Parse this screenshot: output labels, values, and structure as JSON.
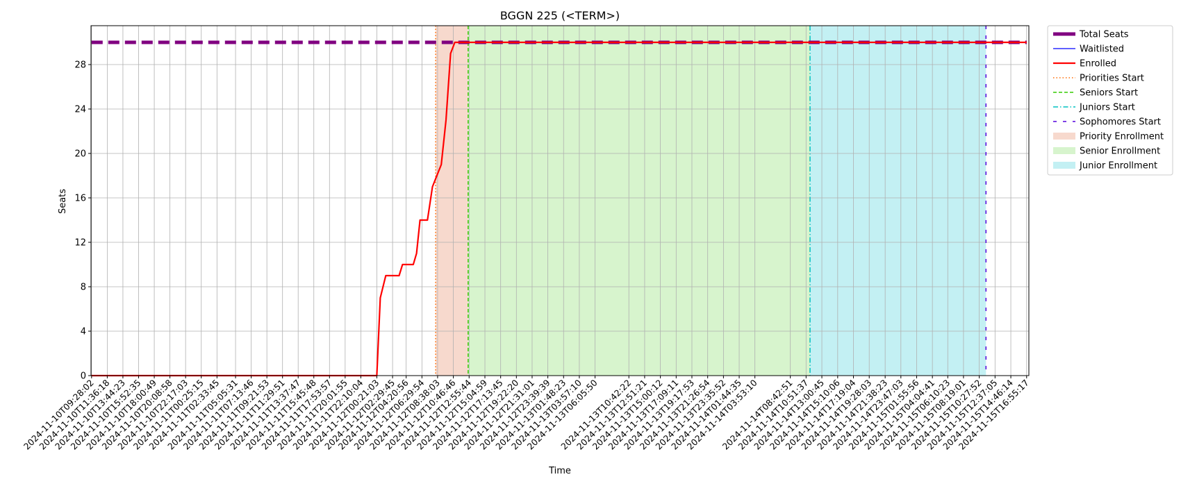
{
  "chart_data": {
    "type": "line",
    "title": "BGGN 225 (<TERM>)",
    "xlabel": "Time",
    "ylabel": "Seats",
    "ylim": [
      0,
      30
    ],
    "yticks": [
      0,
      4,
      8,
      12,
      16,
      20,
      24,
      28
    ],
    "grid": true,
    "legend_position": "outside-top-right",
    "x_ticks": [
      "2024-11-10T09:28:02",
      "2024-11-10T11:36:18",
      "2024-11-10T13:44:23",
      "2024-11-10T15:52:35",
      "2024-11-10T18:00:49",
      "2024-11-10T20:08:58",
      "2024-11-10T22:17:03",
      "2024-11-11T00:25:15",
      "2024-11-11T02:33:45",
      "2024-11-11T05:05:31",
      "2024-11-11T07:13:46",
      "2024-11-11T09:21:53",
      "2024-11-11T11:29:51",
      "2024-11-11T13:37:47",
      "2024-11-11T15:45:48",
      "2024-11-11T17:53:57",
      "2024-11-11T20:01:55",
      "2024-11-11T22:10:04",
      "2024-11-12T00:21:03",
      "2024-11-12T02:29:45",
      "2024-11-12T04:20:56",
      "2024-11-12T06:29:54",
      "2024-11-12T08:38:03",
      "2024-11-12T10:46:46",
      "2024-11-12T12:55:44",
      "2024-11-12T15:04:59",
      "2024-11-12T17:13:45",
      "2024-11-12T19:22:20",
      "2024-11-12T21:31:01",
      "2024-11-12T23:39:39",
      "2024-11-13T01:48:23",
      "2024-11-13T03:57:10",
      "2024-11-13T06:05:50",
      "2024-11-13T10:42:22",
      "2024-11-13T12:51:21",
      "2024-11-13T15:00:12",
      "2024-11-13T17:09:11",
      "2024-11-13T19:17:53",
      "2024-11-13T21:26:54",
      "2024-11-13T23:35:52",
      "2024-11-14T01:44:35",
      "2024-11-14T03:53:10",
      "2024-11-14T08:42:51",
      "2024-11-14T10:51:37",
      "2024-11-14T13:00:45",
      "2024-11-14T15:10:06",
      "2024-11-14T17:19:04",
      "2024-11-14T19:28:03",
      "2024-11-14T21:38:23",
      "2024-11-14T23:47:03",
      "2024-11-15T01:55:56",
      "2024-11-15T04:04:41",
      "2024-11-15T06:10:23",
      "2024-11-15T08:19:01",
      "2024-11-15T10:27:52",
      "2024-11-15T12:37:05",
      "2024-11-15T14:46:14",
      "2024-11-15T16:55:17"
    ],
    "series": [
      {
        "name": "Total Seats",
        "color": "#800080",
        "style": "dashed-thick",
        "points": [
          {
            "x": "2024-11-10T09:28:02",
            "y": 30
          },
          {
            "x": "2024-11-15T16:55:17",
            "y": 30
          }
        ]
      },
      {
        "name": "Waitlisted",
        "color": "#0000ff",
        "style": "solid-thin",
        "points": []
      },
      {
        "name": "Enrolled",
        "color": "#ff0000",
        "style": "solid",
        "points": [
          {
            "x": "2024-11-10T09:28:02",
            "y": 0
          },
          {
            "x": "2024-11-12T00:21:03",
            "y": 0
          },
          {
            "x": "2024-11-12T00:49:00",
            "y": 7
          },
          {
            "x": "2024-11-12T01:34:00",
            "y": 9
          },
          {
            "x": "2024-11-12T03:23:00",
            "y": 9
          },
          {
            "x": "2024-11-12T03:51:00",
            "y": 10
          },
          {
            "x": "2024-11-12T05:19:00",
            "y": 10
          },
          {
            "x": "2024-11-12T05:46:00",
            "y": 11
          },
          {
            "x": "2024-11-12T06:14:00",
            "y": 14
          },
          {
            "x": "2024-11-12T07:15:00",
            "y": 14
          },
          {
            "x": "2024-11-12T07:56:00",
            "y": 17
          },
          {
            "x": "2024-11-12T09:08:00",
            "y": 19
          },
          {
            "x": "2024-11-12T09:47:00",
            "y": 23
          },
          {
            "x": "2024-11-12T10:24:00",
            "y": 29
          },
          {
            "x": "2024-11-12T10:59:00",
            "y": 30
          },
          {
            "x": "2024-11-15T16:55:17",
            "y": 30
          }
        ]
      }
    ],
    "vlines": [
      {
        "name": "Priorities Start",
        "x": "2024-11-12T08:22:00",
        "color": "#ff6a00",
        "style": "dotted"
      },
      {
        "name": "Seniors Start",
        "x": "2024-11-12T12:48:00",
        "color": "#33cc00",
        "style": "dashed"
      },
      {
        "name": "Juniors Start",
        "x": "2024-11-14T11:24:00",
        "color": "#00c0c0",
        "style": "dashdot"
      },
      {
        "name": "Sophomores Start",
        "x": "2024-11-15T11:23:00",
        "color": "#5500dd",
        "style": "loosedash"
      }
    ],
    "spans": [
      {
        "name": "Priority Enrollment",
        "from": "2024-11-12T08:22:00",
        "to": "2024-11-12T12:48:00",
        "color": "#f4c9b8"
      },
      {
        "name": "Senior Enrollment",
        "from": "2024-11-12T12:48:00",
        "to": "2024-11-14T11:24:00",
        "color": "#c6efb8"
      },
      {
        "name": "Junior Enrollment",
        "from": "2024-11-14T11:24:00",
        "to": "2024-11-15T11:23:00",
        "color": "#a9e9ee"
      }
    ],
    "legend": [
      "Total Seats",
      "Waitlisted",
      "Enrolled",
      "Priorities Start",
      "Seniors Start",
      "Juniors Start",
      "Sophomores Start",
      "Priority Enrollment",
      "Senior Enrollment",
      "Junior Enrollment"
    ]
  }
}
